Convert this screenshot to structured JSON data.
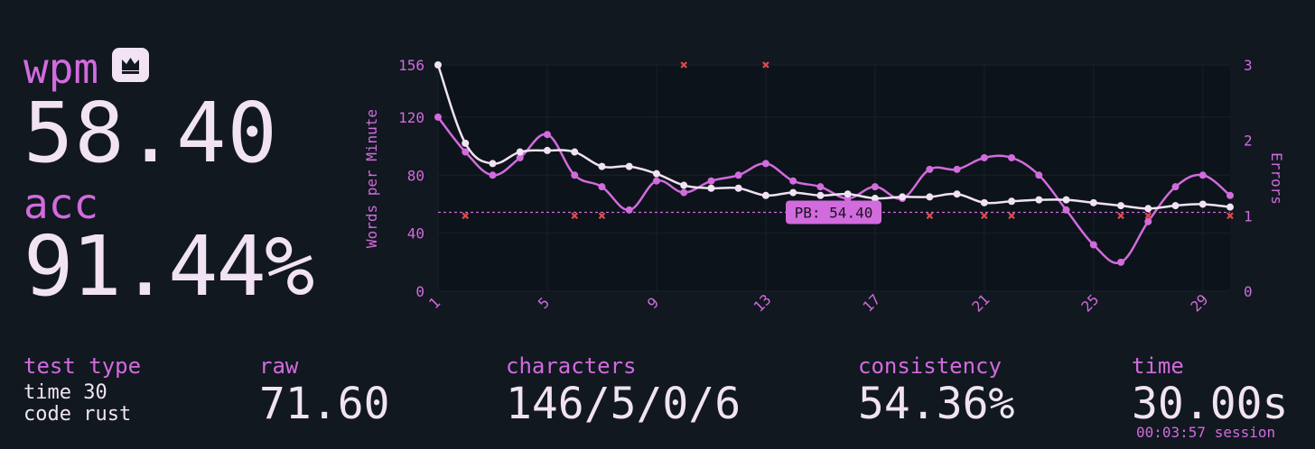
{
  "summary": {
    "wpm_label": "wpm",
    "wpm_value": "58.40",
    "acc_label": "acc",
    "acc_value": "91.44%"
  },
  "stats": {
    "test_type_label": "test type",
    "test_type_line1": "time 30",
    "test_type_line2": "code rust",
    "raw_label": "raw",
    "raw_value": "71.60",
    "characters_label": "characters",
    "characters_value": "146/5/0/6",
    "consistency_label": "consistency",
    "consistency_value": "54.36%",
    "time_label": "time",
    "time_value": "30.00s",
    "session": "00:03:57 session"
  },
  "icons": {
    "personal_best": "crown-icon"
  },
  "colors": {
    "background": "#111820",
    "accent": "#d26bdd",
    "text": "#f1e3f3",
    "error": "#e14b4b"
  },
  "chart_data": {
    "type": "line",
    "x": [
      1,
      2,
      3,
      4,
      5,
      6,
      7,
      8,
      9,
      10,
      11,
      12,
      13,
      14,
      15,
      16,
      17,
      18,
      19,
      20,
      21,
      22,
      23,
      24,
      25,
      26,
      27,
      28,
      29,
      30
    ],
    "x_ticks": [
      1,
      5,
      9,
      13,
      17,
      21,
      25,
      29
    ],
    "ylabel": "Words per Minute",
    "ylabel_right": "Errors",
    "ylim": [
      0,
      156
    ],
    "y_ticks": [
      0,
      40,
      80,
      120,
      156
    ],
    "ylim_right": [
      0,
      3
    ],
    "y_ticks_right": [
      0,
      1,
      2,
      3
    ],
    "series": [
      {
        "role": "raw",
        "color": "#d26bdd",
        "values": [
          120,
          96,
          80,
          92,
          108,
          80,
          72,
          56,
          76,
          68,
          76,
          80,
          88,
          76,
          72,
          64,
          72,
          64,
          84,
          84,
          92,
          92,
          80,
          56,
          32,
          20,
          48,
          72,
          80,
          66
        ]
      },
      {
        "role": "wpm",
        "color": "#f1e3f3",
        "values": [
          156,
          102,
          88,
          96,
          97,
          96,
          86,
          86,
          81,
          73,
          71,
          71,
          66,
          68,
          66,
          67,
          64,
          65,
          65,
          67,
          61,
          62,
          63,
          63,
          61,
          59,
          57,
          59,
          60,
          58
        ]
      }
    ],
    "errors": [
      {
        "x": 2,
        "count": 1
      },
      {
        "x": 6,
        "count": 1
      },
      {
        "x": 7,
        "count": 1
      },
      {
        "x": 10,
        "count": 3
      },
      {
        "x": 13,
        "count": 3
      },
      {
        "x": 19,
        "count": 1
      },
      {
        "x": 21,
        "count": 1
      },
      {
        "x": 22,
        "count": 1
      },
      {
        "x": 26,
        "count": 1
      },
      {
        "x": 27,
        "count": 1
      },
      {
        "x": 30,
        "count": 1
      }
    ],
    "personal_best": {
      "value": 54.4,
      "label": "PB: 54.40"
    }
  }
}
